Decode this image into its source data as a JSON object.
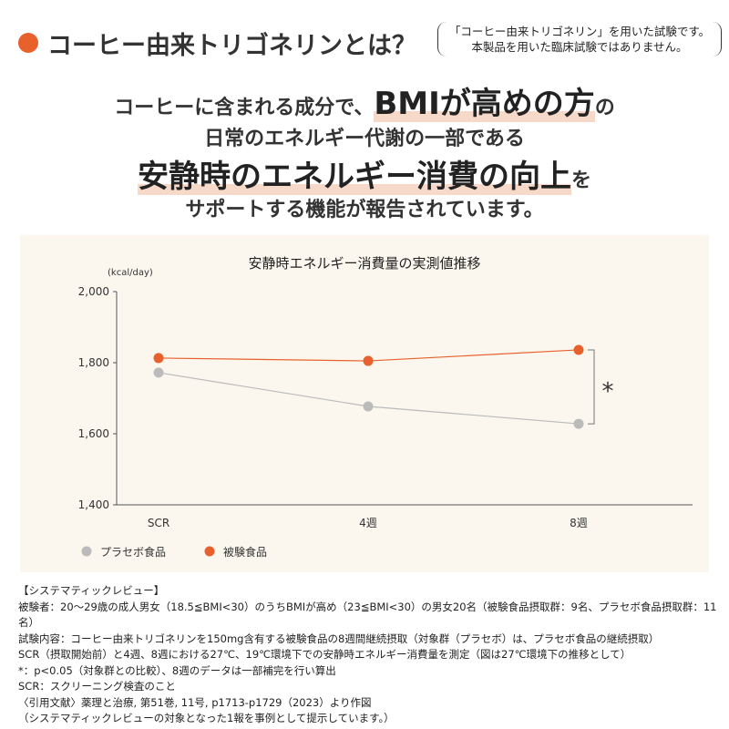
{
  "header": {
    "title": "コーヒー由来トリゴネリンとは？",
    "note_lines": [
      "「コーヒー由来トリゴネリン」を用いた試験です。",
      "本製品を用いた臨床試験ではありません。"
    ],
    "accent": "#e8612c"
  },
  "lead": {
    "l1a": "コーヒーに含まれる成分で、",
    "l1b": "BMIが高めの方",
    "l1c": "の",
    "l2": "日常のエネルギー代謝の一部である",
    "l3a": "安静時のエネルギー消費の向上",
    "l3b": "を",
    "l4": "サポートする機能が報告されています。"
  },
  "chart_data": {
    "type": "line",
    "title": "安静時エネルギー消費量の実測値推移",
    "ylabel": "(kcal/day)",
    "categories": [
      "SCR",
      "4週",
      "8週"
    ],
    "ylim": [
      1400,
      2000
    ],
    "yticks": [
      "2,000",
      "1,800",
      "1,600",
      "1,400"
    ],
    "series": [
      {
        "name": "プラセボ食品",
        "values": [
          1772,
          1677,
          1628
        ],
        "color": "#bbbbbb"
      },
      {
        "name": "被験食品",
        "values": [
          1813,
          1805,
          1836
        ],
        "color": "#e8612c"
      }
    ],
    "annotation": "*",
    "legend": "bottom-left"
  },
  "footnotes": [
    "【システマティックレビュー】",
    "被験者：20～29歳の成人男女（18.5≦BMI<30）のうちBMIが高め（23≦BMI<30）の男女20名（被験食品摂取群：9名、プラセボ食品摂取群：11名）",
    "試験内容：コーヒー由来トリゴネリンを150mg含有する被験食品の8週間継続摂取（対象群（プラセボ）は、プラセボ食品の継続摂取）",
    "SCR（摂取開始前）と4週、8週における27℃、19℃環境下での安静時エネルギー消費量を測定（図は27℃環境下の推移として）",
    "*：p<0.05（対象群との比較）、8週のデータは一部補完を行い算出",
    "SCR：スクリーニング検査のこと",
    "〈引用文献〉薬理と治療, 第51巻, 11号, p1713-p1729（2023）より作図",
    "（システマティックレビューの対象となった1報を事例として提示しています。）"
  ]
}
